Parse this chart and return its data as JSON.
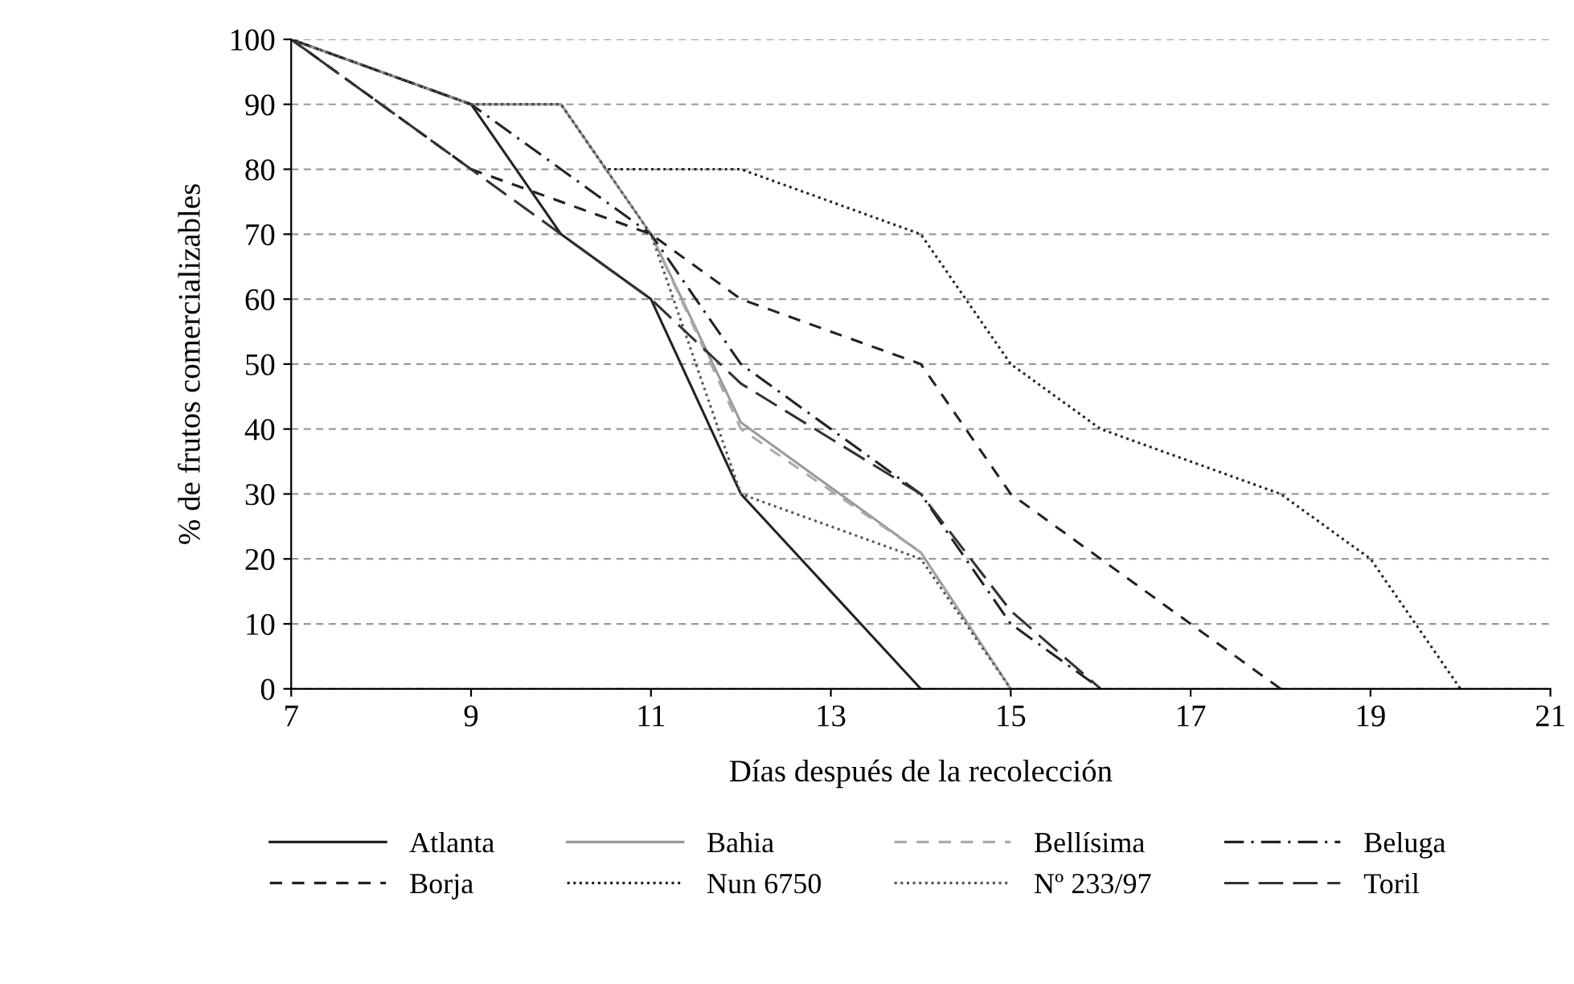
{
  "chart_data": {
    "type": "line",
    "xlabel": "Días después de la recolección",
    "ylabel": "% de frutos comercializables",
    "xlim": [
      7,
      21
    ],
    "xticks": [
      7,
      9,
      11,
      13,
      15,
      17,
      19,
      21
    ],
    "ylim": [
      0,
      100
    ],
    "yticks": [
      0,
      10,
      20,
      30,
      40,
      50,
      60,
      70,
      80,
      90,
      100
    ],
    "grid": "y",
    "legend": "bottom",
    "marker": "none",
    "series": [
      {
        "name": "Atlanta",
        "color": "#222222",
        "line_style": "solid",
        "x": [
          7,
          9,
          10,
          11,
          12,
          14
        ],
        "values": [
          100,
          90,
          70,
          60,
          30,
          0
        ]
      },
      {
        "name": "Bahia",
        "color": "#999999",
        "line_style": "solid",
        "x": [
          7,
          9,
          10,
          11,
          12,
          14,
          15
        ],
        "values": [
          100,
          90,
          90,
          70,
          41,
          21,
          0
        ]
      },
      {
        "name": "Bellísima",
        "color": "#aaaaaa",
        "line_style": "dashed",
        "x": [
          7,
          9,
          11,
          12,
          14,
          15
        ],
        "values": [
          100,
          80,
          70,
          40,
          21,
          0
        ]
      },
      {
        "name": "Beluga",
        "color": "#222222",
        "line_style": "dashdot",
        "x": [
          7,
          9,
          11,
          12,
          14,
          15,
          16
        ],
        "values": [
          100,
          90,
          70,
          50,
          30,
          10,
          0
        ]
      },
      {
        "name": "Borja",
        "color": "#222222",
        "line_style": "dashed",
        "x": [
          7,
          9,
          11,
          12,
          14,
          15,
          16,
          17,
          18
        ],
        "values": [
          100,
          80,
          70,
          60,
          50,
          30,
          20,
          10,
          0
        ]
      },
      {
        "name": "Nun 6750",
        "color": "#222222",
        "line_style": "dotted",
        "x": [
          7,
          9,
          10,
          10.5,
          12,
          14,
          15,
          16,
          18,
          19,
          20
        ],
        "values": [
          100,
          90,
          90,
          80,
          80,
          70,
          50,
          40,
          30,
          20,
          0
        ]
      },
      {
        "name": "Nº 233/97",
        "color": "#555555",
        "line_style": "dotted",
        "x": [
          7,
          9,
          10,
          11,
          12,
          14,
          15
        ],
        "values": [
          100,
          90,
          90,
          70,
          30,
          20,
          0
        ]
      },
      {
        "name": "Toril",
        "color": "#333333",
        "line_style": "longdash",
        "x": [
          7,
          8,
          11,
          12,
          14,
          15,
          16
        ],
        "values": [
          100,
          90,
          60,
          47,
          30,
          12,
          0
        ]
      }
    ]
  }
}
